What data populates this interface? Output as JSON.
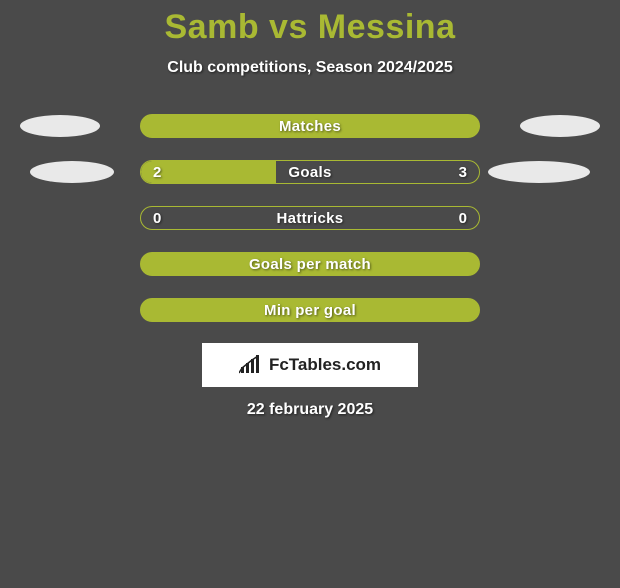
{
  "title": "Samb vs Messina",
  "subtitle": "Club competitions, Season 2024/2025",
  "colors": {
    "accent": "#a9b933",
    "background": "#4a4a4a",
    "disc": "#e9e9e9",
    "text": "#ffffff",
    "logo_bg": "#ffffff",
    "logo_text": "#222222"
  },
  "rows": [
    {
      "label": "Matches",
      "filled": true,
      "show_discs": true,
      "disc_variant": "normal"
    },
    {
      "label": "Goals",
      "left_val": "2",
      "right_val": "3",
      "fill_pct": 40,
      "show_discs": true,
      "disc_variant": "large"
    },
    {
      "label": "Hattricks",
      "left_val": "0",
      "right_val": "0",
      "fill_pct": 0,
      "show_discs": false
    },
    {
      "label": "Goals per match",
      "filled": true,
      "show_discs": false
    },
    {
      "label": "Min per goal",
      "filled": true,
      "show_discs": false
    }
  ],
  "logo_text": "FcTables.com",
  "date": "22 february 2025"
}
